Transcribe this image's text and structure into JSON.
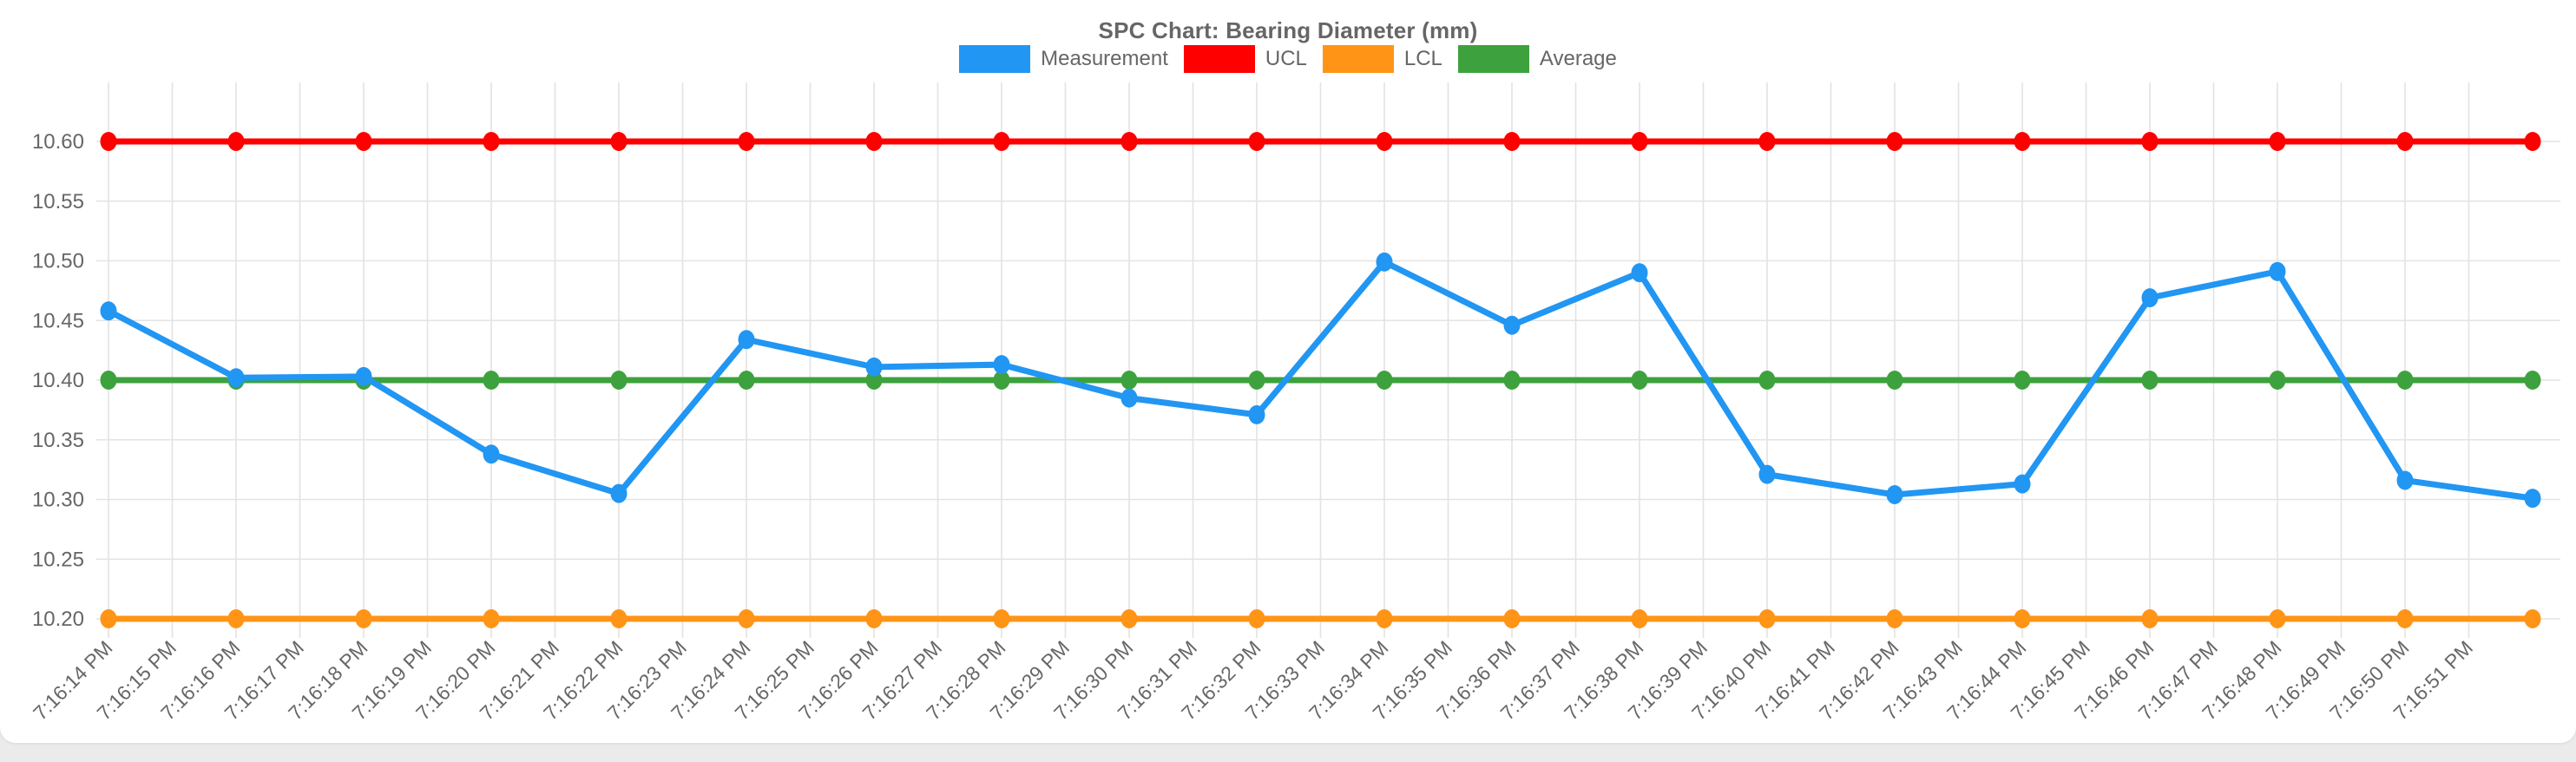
{
  "chart_data": {
    "type": "line",
    "title": "SPC Chart: Bearing Diameter (mm)",
    "y_ticks": [
      "10.60",
      "10.55",
      "10.50",
      "10.45",
      "10.40",
      "10.35",
      "10.30",
      "10.25",
      "10.20"
    ],
    "ylim": [
      10.19,
      10.65
    ],
    "grid": true,
    "legend_position": "top",
    "x_tick_labels": [
      "7:16:14 PM",
      "7:16:15 PM",
      "7:16:16 PM",
      "7:16:17 PM",
      "7:16:18 PM",
      "7:16:19 PM",
      "7:16:20 PM",
      "7:16:21 PM",
      "7:16:22 PM",
      "7:16:23 PM",
      "7:16:24 PM",
      "7:16:25 PM",
      "7:16:26 PM",
      "7:16:27 PM",
      "7:16:28 PM",
      "7:16:29 PM",
      "7:16:30 PM",
      "7:16:31 PM",
      "7:16:32 PM",
      "7:16:33 PM",
      "7:16:34 PM",
      "7:16:35 PM",
      "7:16:36 PM",
      "7:16:37 PM",
      "7:16:38 PM",
      "7:16:39 PM",
      "7:16:40 PM",
      "7:16:41 PM",
      "7:16:42 PM",
      "7:16:43 PM",
      "7:16:44 PM",
      "7:16:45 PM",
      "7:16:46 PM",
      "7:16:47 PM",
      "7:16:48 PM",
      "7:16:49 PM",
      "7:16:50 PM",
      "7:16:51 PM"
    ],
    "series": [
      {
        "name": "Measurement",
        "color": "#2196F3",
        "points": [
          {
            "t": "7:16:14 PM",
            "v": 10.458
          },
          {
            "t": "7:16:16 PM",
            "v": 10.402
          },
          {
            "t": "7:16:18 PM",
            "v": 10.403
          },
          {
            "t": "7:16:20 PM",
            "v": 10.338
          },
          {
            "t": "7:16:22 PM",
            "v": 10.305
          },
          {
            "t": "7:16:24 PM",
            "v": 10.434
          },
          {
            "t": "7:16:26 PM",
            "v": 10.411
          },
          {
            "t": "7:16:28 PM",
            "v": 10.413
          },
          {
            "t": "7:16:30 PM",
            "v": 10.385
          },
          {
            "t": "7:16:32 PM",
            "v": 10.371
          },
          {
            "t": "7:16:34 PM",
            "v": 10.499
          },
          {
            "t": "7:16:36 PM",
            "v": 10.446
          },
          {
            "t": "7:16:38 PM",
            "v": 10.49
          },
          {
            "t": "7:16:40 PM",
            "v": 10.321
          },
          {
            "t": "7:16:42 PM",
            "v": 10.304
          },
          {
            "t": "7:16:44 PM",
            "v": 10.313
          },
          {
            "t": "7:16:46 PM",
            "v": 10.469
          },
          {
            "t": "7:16:48 PM",
            "v": 10.491
          },
          {
            "t": "7:16:50 PM",
            "v": 10.316
          },
          {
            "t": "7:16:52 PM",
            "v": 10.301
          }
        ]
      },
      {
        "name": "UCL",
        "color": "#FF0000",
        "constant": 10.6
      },
      {
        "name": "LCL",
        "color": "#FF9416",
        "constant": 10.2
      },
      {
        "name": "Average",
        "color": "#3DA23D",
        "constant": 10.4
      }
    ]
  },
  "legend": [
    {
      "label": "Measurement",
      "color": "#2196F3"
    },
    {
      "label": "UCL",
      "color": "#FF0000"
    },
    {
      "label": "LCL",
      "color": "#FF9416"
    },
    {
      "label": "Average",
      "color": "#3DA23D"
    }
  ],
  "colors": {
    "grid": "#e3e3e3",
    "axis_text": "#666666",
    "title_text": "#666666",
    "card_bg": "#ffffff",
    "page_bg": "#ebebeb"
  }
}
